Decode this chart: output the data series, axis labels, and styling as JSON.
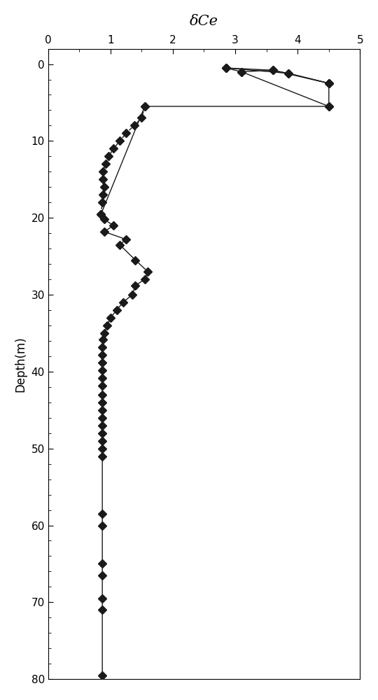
{
  "title": "δCe",
  "ylabel": "Depth(m)",
  "xlim": [
    0,
    5
  ],
  "ylim": [
    80,
    -2
  ],
  "xticks": [
    0,
    1,
    2,
    3,
    4,
    5
  ],
  "yticks": [
    0,
    10,
    20,
    30,
    40,
    50,
    60,
    70,
    80
  ],
  "background_color": "#ffffff",
  "marker": "D",
  "markersize": 6,
  "linewidth": 1.0,
  "color": "#1a1a1a",
  "solid_points": [
    [
      2.85,
      0.5
    ],
    [
      3.1,
      1.0
    ],
    [
      3.6,
      0.8
    ],
    [
      3.85,
      1.2
    ],
    [
      4.5,
      2.5
    ],
    [
      4.5,
      5.5
    ],
    [
      1.55,
      5.5
    ],
    [
      0.85,
      19.5
    ],
    [
      0.9,
      20.2
    ],
    [
      1.05,
      21.0
    ],
    [
      0.9,
      21.8
    ],
    [
      1.25,
      22.8
    ],
    [
      1.15,
      23.5
    ],
    [
      1.4,
      25.5
    ],
    [
      1.6,
      27.0
    ],
    [
      1.55,
      28.0
    ],
    [
      1.4,
      28.8
    ],
    [
      1.35,
      30.0
    ],
    [
      1.2,
      31.0
    ],
    [
      1.1,
      32.0
    ],
    [
      1.0,
      33.0
    ],
    [
      0.95,
      34.0
    ],
    [
      0.9,
      35.0
    ],
    [
      0.88,
      35.8
    ],
    [
      0.87,
      36.8
    ],
    [
      0.87,
      37.8
    ],
    [
      0.87,
      38.8
    ],
    [
      0.87,
      39.8
    ],
    [
      0.87,
      40.8
    ],
    [
      0.87,
      41.8
    ],
    [
      0.87,
      43.0
    ],
    [
      0.87,
      44.0
    ],
    [
      0.87,
      45.0
    ],
    [
      0.87,
      46.0
    ],
    [
      0.87,
      47.0
    ],
    [
      0.87,
      48.0
    ],
    [
      0.87,
      49.0
    ],
    [
      0.87,
      50.0
    ],
    [
      0.87,
      51.0
    ],
    [
      0.87,
      58.5
    ],
    [
      0.87,
      60.0
    ],
    [
      0.87,
      65.0
    ],
    [
      0.87,
      66.5
    ],
    [
      0.87,
      69.5
    ],
    [
      0.87,
      71.0
    ],
    [
      0.87,
      79.5
    ]
  ],
  "dashed_points": [
    [
      1.55,
      5.5
    ],
    [
      1.5,
      7.0
    ],
    [
      1.38,
      8.0
    ],
    [
      1.25,
      9.0
    ],
    [
      1.15,
      10.0
    ],
    [
      1.05,
      11.0
    ],
    [
      0.97,
      12.0
    ],
    [
      0.92,
      13.0
    ],
    [
      0.88,
      14.0
    ],
    [
      0.88,
      15.0
    ],
    [
      0.9,
      16.0
    ],
    [
      0.88,
      17.0
    ],
    [
      0.87,
      18.0
    ],
    [
      0.85,
      19.5
    ]
  ],
  "top_lines": [
    [
      [
        2.85,
        3.85,
        4.5
      ],
      [
        0.5,
        1.2,
        2.5
      ]
    ],
    [
      [
        2.85,
        3.6,
        4.5
      ],
      [
        0.5,
        0.8,
        2.5
      ]
    ],
    [
      [
        3.1,
        4.5
      ],
      [
        1.0,
        5.5
      ]
    ]
  ]
}
